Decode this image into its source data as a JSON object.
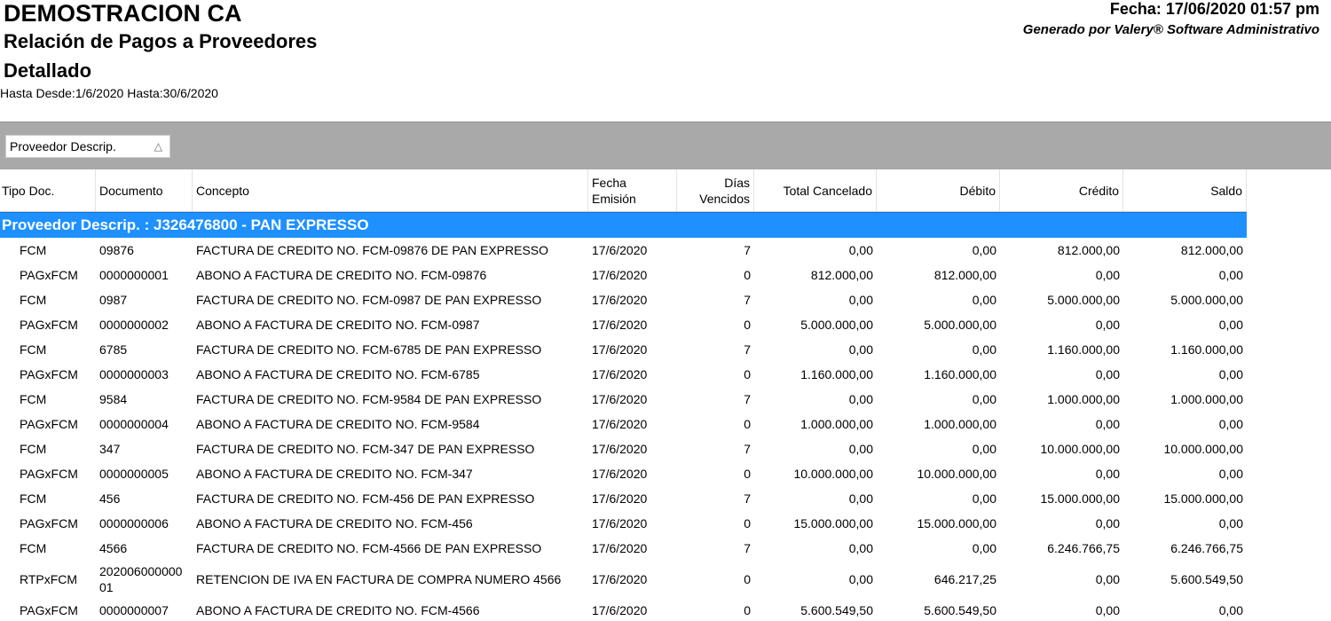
{
  "header": {
    "title": "DEMOSTRACION CA",
    "subtitle": "Relación de Pagos a Proveedores",
    "subtitle2": "Detallado",
    "range": "Hasta  Desde:1/6/2020 Hasta:30/6/2020",
    "date": "Fecha: 17/06/2020 01:57 pm",
    "generated": "Generado por Valery® Software Administrativo"
  },
  "group_button": "Proveedor Descrip.",
  "table": {
    "columns": [
      [
        "Tipo Doc."
      ],
      [
        "Documento"
      ],
      [
        "Concepto"
      ],
      [
        "Fecha",
        "Emisión"
      ],
      [
        "Días",
        "Vencidos"
      ],
      [
        "Total Cancelado"
      ],
      [
        "Débito"
      ],
      [
        "Crédito"
      ],
      [
        "Saldo"
      ]
    ],
    "group": "Proveedor Descrip. : J326476800 - PAN EXPRESSO",
    "rows": [
      [
        "FCM",
        "09876",
        "FACTURA DE CREDITO NO. FCM-09876 DE PAN EXPRESSO",
        "17/6/2020",
        "7",
        "0,00",
        "0,00",
        "812.000,00",
        "812.000,00"
      ],
      [
        "PAGxFCM",
        "0000000001",
        "ABONO A FACTURA DE CREDITO NO. FCM-09876",
        "17/6/2020",
        "0",
        "812.000,00",
        "812.000,00",
        "0,00",
        "0,00"
      ],
      [
        "FCM",
        "0987",
        "FACTURA DE CREDITO NO. FCM-0987 DE PAN EXPRESSO",
        "17/6/2020",
        "7",
        "0,00",
        "0,00",
        "5.000.000,00",
        "5.000.000,00"
      ],
      [
        "PAGxFCM",
        "0000000002",
        "ABONO A FACTURA DE CREDITO NO. FCM-0987",
        "17/6/2020",
        "0",
        "5.000.000,00",
        "5.000.000,00",
        "0,00",
        "0,00"
      ],
      [
        "FCM",
        "6785",
        "FACTURA DE CREDITO NO. FCM-6785 DE PAN EXPRESSO",
        "17/6/2020",
        "7",
        "0,00",
        "0,00",
        "1.160.000,00",
        "1.160.000,00"
      ],
      [
        "PAGxFCM",
        "0000000003",
        "ABONO A FACTURA DE CREDITO NO. FCM-6785",
        "17/6/2020",
        "0",
        "1.160.000,00",
        "1.160.000,00",
        "0,00",
        "0,00"
      ],
      [
        "FCM",
        "9584",
        "FACTURA DE CREDITO NO. FCM-9584 DE PAN EXPRESSO",
        "17/6/2020",
        "7",
        "0,00",
        "0,00",
        "1.000.000,00",
        "1.000.000,00"
      ],
      [
        "PAGxFCM",
        "0000000004",
        "ABONO A FACTURA DE CREDITO NO. FCM-9584",
        "17/6/2020",
        "0",
        "1.000.000,00",
        "1.000.000,00",
        "0,00",
        "0,00"
      ],
      [
        "FCM",
        "347",
        "FACTURA DE CREDITO NO. FCM-347 DE PAN EXPRESSO",
        "17/6/2020",
        "7",
        "0,00",
        "0,00",
        "10.000.000,00",
        "10.000.000,00"
      ],
      [
        "PAGxFCM",
        "0000000005",
        "ABONO A FACTURA DE CREDITO NO. FCM-347",
        "17/6/2020",
        "0",
        "10.000.000,00",
        "10.000.000,00",
        "0,00",
        "0,00"
      ],
      [
        "FCM",
        "456",
        "FACTURA DE CREDITO NO. FCM-456 DE PAN EXPRESSO",
        "17/6/2020",
        "7",
        "0,00",
        "0,00",
        "15.000.000,00",
        "15.000.000,00"
      ],
      [
        "PAGxFCM",
        "0000000006",
        "ABONO A FACTURA DE CREDITO NO. FCM-456",
        "17/6/2020",
        "0",
        "15.000.000,00",
        "15.000.000,00",
        "0,00",
        "0,00"
      ],
      [
        "FCM",
        "4566",
        "FACTURA DE CREDITO NO. FCM-4566 DE PAN EXPRESSO",
        "17/6/2020",
        "7",
        "0,00",
        "0,00",
        "6.246.766,75",
        "6.246.766,75"
      ],
      [
        "RTPxFCM",
        "20200600000001",
        "RETENCION DE IVA EN FACTURA DE COMPRA NUMERO 4566",
        "17/6/2020",
        "0",
        "0,00",
        "646.217,25",
        "0,00",
        "5.600.549,50"
      ],
      [
        "PAGxFCM",
        "0000000007",
        "ABONO A FACTURA DE CREDITO NO. FCM-4566",
        "17/6/2020",
        "0",
        "5.600.549,50",
        "5.600.549,50",
        "0,00",
        "0,00"
      ]
    ]
  }
}
